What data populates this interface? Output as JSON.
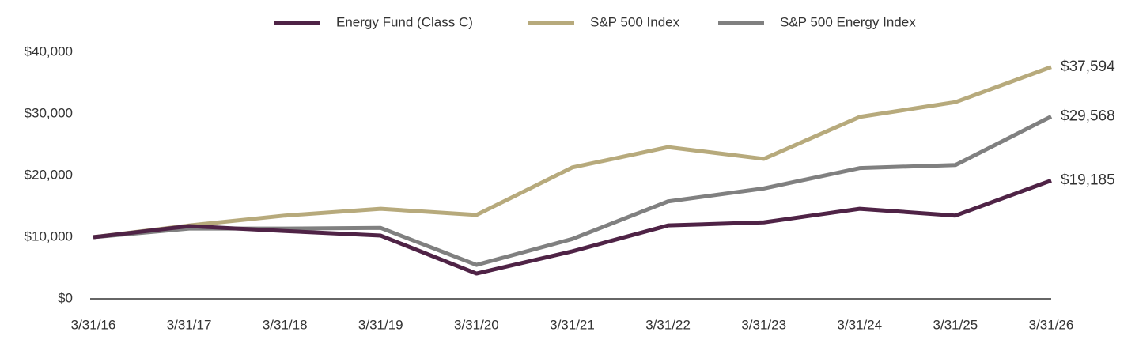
{
  "chart_data": {
    "type": "line",
    "categories": [
      "3/31/16",
      "3/31/17",
      "3/31/18",
      "3/31/19",
      "3/31/20",
      "3/31/21",
      "3/31/22",
      "3/31/23",
      "3/31/24",
      "3/31/25",
      "3/31/26"
    ],
    "series": [
      {
        "name": "Energy Fund (Class C)",
        "color": "#4f2346",
        "values": [
          10000,
          11800,
          11000,
          10250,
          4100,
          7700,
          11900,
          12400,
          14600,
          13500,
          19185
        ],
        "value_labels": [
          null,
          null,
          null,
          null,
          null,
          null,
          null,
          null,
          null,
          null,
          "$19,185"
        ]
      },
      {
        "name": "S&P 500 Index",
        "color": "#b7aa7c",
        "values": [
          10000,
          11900,
          13500,
          14600,
          13600,
          21300,
          24600,
          22700,
          29500,
          31900,
          37594
        ],
        "value_labels": [
          null,
          null,
          null,
          null,
          null,
          null,
          null,
          null,
          null,
          null,
          "$37,594"
        ]
      },
      {
        "name": "S&P 500 Energy Index",
        "color": "#808080",
        "values": [
          10000,
          11400,
          11400,
          11500,
          5500,
          9700,
          15800,
          17900,
          21200,
          21700,
          29568
        ],
        "value_labels": [
          null,
          null,
          null,
          null,
          null,
          null,
          null,
          null,
          null,
          null,
          "$29,568"
        ]
      }
    ],
    "ylim": [
      0,
      40000
    ],
    "yticks": [
      {
        "value": 0,
        "label": "$0"
      },
      {
        "value": 10000,
        "label": "$10,000"
      },
      {
        "value": 20000,
        "label": "$20,000"
      },
      {
        "value": 30000,
        "label": "$30,000"
      },
      {
        "value": 40000,
        "label": "$40,000"
      }
    ],
    "grid": false,
    "legend": "top"
  }
}
